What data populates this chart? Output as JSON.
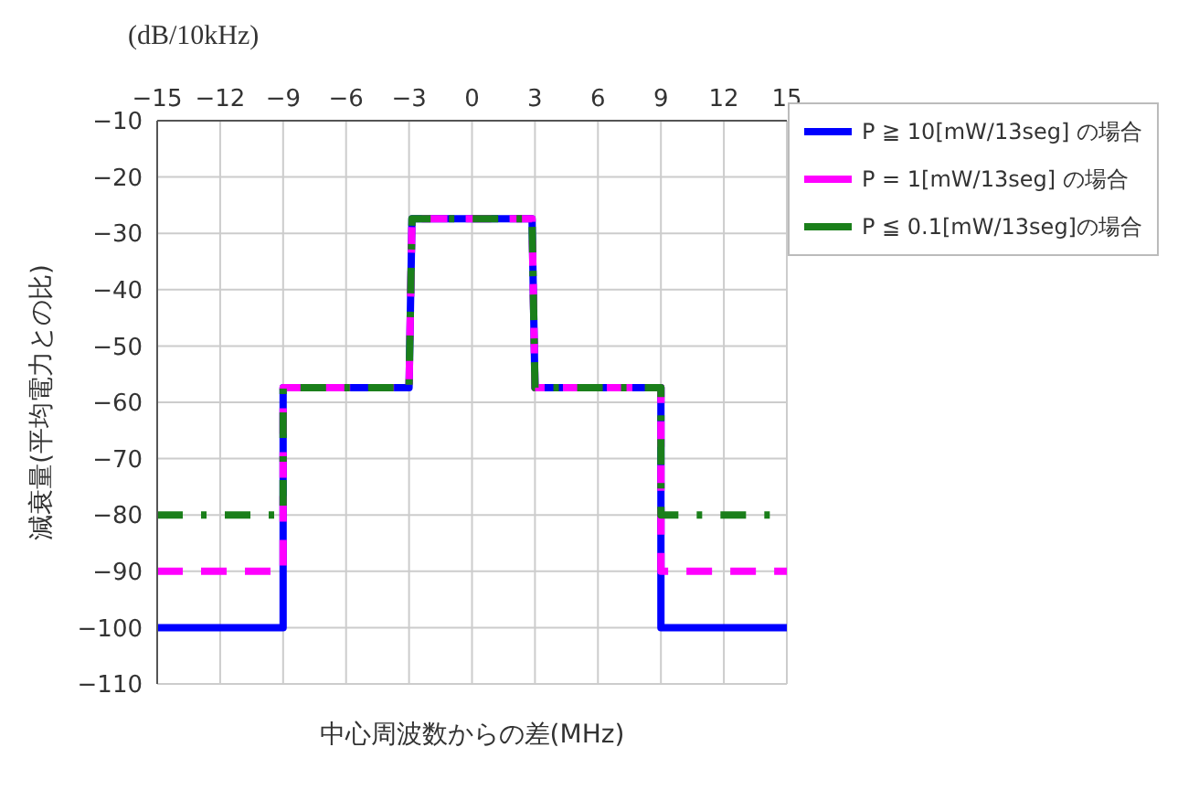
{
  "chart_data": {
    "type": "line",
    "xlabel": "中心周波数からの差(MHz)",
    "ylabel": "減衰量(平均電力との比)",
    "annotations": [
      "(dB/10kHz)"
    ],
    "x": [
      -15,
      -9,
      -9,
      -3,
      -2.86,
      2.86,
      3,
      9,
      9,
      15
    ],
    "series": [
      {
        "name": "P ≧ 10[mW/13seg] の場合",
        "color": "#0000ff",
        "line_style": "solid",
        "values": [
          -100,
          -100,
          -57.4,
          -57.4,
          -27.4,
          -27.4,
          -57.4,
          -57.4,
          -100,
          -100
        ]
      },
      {
        "name": "P = 1[mW/13seg] の場合",
        "color": "#ff00ff",
        "line_style": "dashed",
        "values": [
          -90,
          -90,
          -57.4,
          -57.4,
          -27.4,
          -27.4,
          -57.4,
          -57.4,
          -90,
          -90
        ]
      },
      {
        "name": "P ≦ 0.1[mW/13seg]の場合",
        "color": "#1a7f1a",
        "line_style": "dashdot",
        "values": [
          -80,
          -80,
          -57.4,
          -57.4,
          -27.4,
          -27.4,
          -57.4,
          -57.4,
          -80,
          -80
        ]
      }
    ],
    "xlim": [
      -15,
      15
    ],
    "xticks": [
      -15,
      -12,
      -9,
      -6,
      -3,
      0,
      3,
      6,
      9,
      12,
      15
    ],
    "ylim": [
      -110,
      -10
    ],
    "yticks": [
      -110,
      -100,
      -90,
      -80,
      -70,
      -60,
      -50,
      -40,
      -30,
      -20,
      -10
    ],
    "grid": true,
    "legend": "top right",
    "marker": "none"
  }
}
